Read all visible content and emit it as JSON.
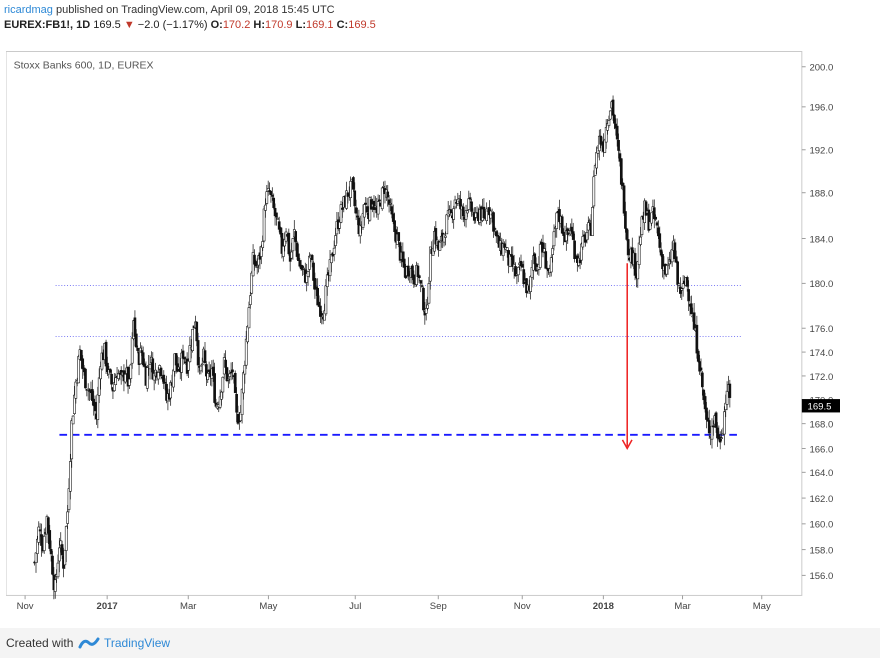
{
  "header": {
    "author": "ricardmag",
    "published_text": "published on TradingView.com, April 09, 2018 15:45 UTC",
    "symbol": "EUREX:FB1!, 1D",
    "last": "169.5",
    "change_arrow": "▼",
    "change": "−2.0 (−1.17%)",
    "open_label": "O:",
    "open": "170.2",
    "high_label": "H:",
    "high": "170.9",
    "low_label": "L:",
    "low": "169.1",
    "close_label": "C:",
    "close": "169.5"
  },
  "footer": {
    "created_with": "Created with",
    "brand": "TradingView"
  },
  "chart_data": {
    "type": "candlestick",
    "title": "Stoxx Banks 600, 1D, EUREX",
    "y_ticks": [
      "156.0",
      "158.0",
      "160.0",
      "162.0",
      "164.0",
      "166.0",
      "168.0",
      "170.0",
      "172.0",
      "174.0",
      "176.0",
      "180.0",
      "184.0",
      "188.0",
      "192.0",
      "196.0",
      "200.0"
    ],
    "x_ticks": [
      "Nov",
      "2017",
      "Mar",
      "May",
      "Jul",
      "Sep",
      "Nov",
      "2018",
      "Mar",
      "May"
    ],
    "x_ticks_bold": [
      "2017",
      "2018"
    ],
    "last_price_label": "169.5",
    "horizontal_lines": [
      {
        "value": 179.8,
        "style": "dotted",
        "color": "#4a4af0"
      },
      {
        "value": 175.3,
        "style": "dotted",
        "color": "#4a4af0"
      },
      {
        "value": 167.1,
        "style": "dashed",
        "color": "#1a1aff"
      }
    ],
    "annotation_arrow": {
      "color": "#ee2222",
      "from_value": 181.8,
      "to_value": 166.0,
      "at": "2018-02"
    },
    "path": [
      [
        0,
        157.0
      ],
      [
        4,
        159.5
      ],
      [
        8,
        158.5
      ],
      [
        12,
        160.5
      ],
      [
        16,
        157.5
      ],
      [
        20,
        155.0
      ],
      [
        24,
        158.5
      ],
      [
        28,
        157.0
      ],
      [
        32,
        161.0
      ],
      [
        36,
        168.0
      ],
      [
        40,
        171.5
      ],
      [
        44,
        174.0
      ],
      [
        48,
        172.0
      ],
      [
        52,
        171.0
      ],
      [
        56,
        170.0
      ],
      [
        60,
        168.5
      ],
      [
        64,
        173.5
      ],
      [
        68,
        174.0
      ],
      [
        72,
        172.0
      ],
      [
        76,
        171.0
      ],
      [
        80,
        172.5
      ],
      [
        84,
        171.5
      ],
      [
        88,
        172.5
      ],
      [
        92,
        171.0
      ],
      [
        96,
        176.5
      ],
      [
        100,
        173.5
      ],
      [
        104,
        174.0
      ],
      [
        108,
        172.0
      ],
      [
        112,
        173.5
      ],
      [
        116,
        172.0
      ],
      [
        120,
        173.0
      ],
      [
        124,
        172.5
      ],
      [
        128,
        170.0
      ],
      [
        132,
        171.0
      ],
      [
        136,
        173.5
      ],
      [
        140,
        172.0
      ],
      [
        144,
        174.0
      ],
      [
        148,
        173.0
      ],
      [
        152,
        175.0
      ],
      [
        156,
        177.0
      ],
      [
        160,
        172.0
      ],
      [
        164,
        173.5
      ],
      [
        168,
        171.5
      ],
      [
        172,
        172.5
      ],
      [
        176,
        169.5
      ],
      [
        180,
        170.5
      ],
      [
        184,
        173.0
      ],
      [
        188,
        171.5
      ],
      [
        192,
        172.5
      ],
      [
        196,
        168.5
      ],
      [
        200,
        169.0
      ],
      [
        204,
        173.5
      ],
      [
        208,
        178.0
      ],
      [
        212,
        182.0
      ],
      [
        216,
        181.5
      ],
      [
        220,
        183.0
      ],
      [
        224,
        187.5
      ],
      [
        228,
        188.0
      ],
      [
        232,
        186.5
      ],
      [
        236,
        185.0
      ],
      [
        240,
        183.0
      ],
      [
        244,
        185.0
      ],
      [
        248,
        182.0
      ],
      [
        252,
        184.5
      ],
      [
        256,
        182.0
      ],
      [
        260,
        181.0
      ],
      [
        264,
        180.5
      ],
      [
        268,
        182.5
      ],
      [
        272,
        179.5
      ],
      [
        276,
        178.0
      ],
      [
        280,
        177.5
      ],
      [
        284,
        180.0
      ],
      [
        288,
        182.0
      ],
      [
        292,
        184.5
      ],
      [
        296,
        186.0
      ],
      [
        300,
        187.0
      ],
      [
        304,
        188.0
      ],
      [
        308,
        188.5
      ],
      [
        312,
        186.0
      ],
      [
        316,
        184.5
      ],
      [
        320,
        187.0
      ],
      [
        324,
        186.5
      ],
      [
        328,
        187.5
      ],
      [
        332,
        186.0
      ],
      [
        336,
        187.5
      ],
      [
        340,
        188.5
      ],
      [
        344,
        187.0
      ],
      [
        348,
        185.0
      ],
      [
        352,
        184.0
      ],
      [
        356,
        182.0
      ],
      [
        360,
        181.0
      ],
      [
        364,
        181.5
      ],
      [
        368,
        180.5
      ],
      [
        372,
        181.0
      ],
      [
        376,
        179.0
      ],
      [
        380,
        177.0
      ],
      [
        384,
        182.5
      ],
      [
        388,
        184.5
      ],
      [
        392,
        183.0
      ],
      [
        396,
        184.0
      ],
      [
        400,
        185.5
      ],
      [
        404,
        186.0
      ],
      [
        408,
        187.5
      ],
      [
        412,
        187.0
      ],
      [
        416,
        186.0
      ],
      [
        420,
        187.0
      ],
      [
        424,
        186.5
      ],
      [
        428,
        185.5
      ],
      [
        432,
        186.5
      ],
      [
        436,
        185.5
      ],
      [
        440,
        187.0
      ],
      [
        444,
        186.0
      ],
      [
        448,
        184.0
      ],
      [
        452,
        183.0
      ],
      [
        456,
        183.5
      ],
      [
        460,
        182.0
      ],
      [
        464,
        181.5
      ],
      [
        468,
        180.5
      ],
      [
        472,
        181.5
      ],
      [
        476,
        180.0
      ],
      [
        480,
        179.0
      ],
      [
        484,
        182.5
      ],
      [
        488,
        181.5
      ],
      [
        492,
        183.5
      ],
      [
        496,
        182.0
      ],
      [
        500,
        180.5
      ],
      [
        504,
        184.0
      ],
      [
        508,
        186.5
      ],
      [
        512,
        185.0
      ],
      [
        516,
        184.0
      ],
      [
        520,
        185.0
      ],
      [
        524,
        183.0
      ],
      [
        528,
        182.0
      ],
      [
        532,
        183.5
      ],
      [
        536,
        184.5
      ],
      [
        540,
        185.0
      ],
      [
        544,
        191.0
      ],
      [
        548,
        193.0
      ],
      [
        552,
        192.5
      ],
      [
        556,
        195.0
      ],
      [
        560,
        196.5
      ],
      [
        564,
        193.5
      ],
      [
        568,
        190.5
      ],
      [
        572,
        187.0
      ],
      [
        576,
        183.0
      ],
      [
        580,
        182.5
      ],
      [
        584,
        181.0
      ],
      [
        588,
        184.5
      ],
      [
        592,
        186.5
      ],
      [
        596,
        185.5
      ],
      [
        600,
        186.0
      ],
      [
        604,
        185.0
      ],
      [
        608,
        182.5
      ],
      [
        612,
        181.0
      ],
      [
        616,
        181.5
      ],
      [
        620,
        183.5
      ],
      [
        624,
        180.0
      ],
      [
        628,
        179.0
      ],
      [
        632,
        180.5
      ],
      [
        636,
        178.5
      ],
      [
        640,
        176.0
      ],
      [
        644,
        174.0
      ],
      [
        648,
        171.0
      ],
      [
        652,
        168.0
      ],
      [
        656,
        167.5
      ],
      [
        660,
        168.5
      ],
      [
        664,
        166.5
      ],
      [
        668,
        168.0
      ],
      [
        672,
        171.0
      ],
      [
        676,
        169.5
      ]
    ]
  }
}
